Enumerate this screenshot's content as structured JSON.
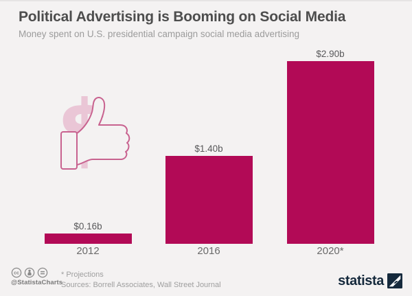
{
  "header": {
    "title": "Political Advertising is Booming on Social Media",
    "subtitle": "Money spent on U.S. presidential campaign social media advertising"
  },
  "chart_data": {
    "type": "bar",
    "title": "Political Advertising is Booming on Social Media",
    "subtitle": "Money spent on U.S. presidential campaign social media advertising",
    "categories": [
      "2012",
      "2016",
      "2020*"
    ],
    "values": [
      0.16,
      1.4,
      2.9
    ],
    "value_labels": [
      "$0.16b",
      "$1.40b",
      "$2.90b"
    ],
    "ylim": [
      0,
      2.9
    ],
    "grid": false,
    "legend": "none",
    "bar_color": "#b20a56"
  },
  "deco": {
    "dollar_glyph": "$"
  },
  "footer": {
    "cc_label": "cc",
    "handle": "@StatistaCharts",
    "note": "* Projections",
    "sources": "Sources: Borrell Associates, Wall Street Journal",
    "brand": "statista"
  },
  "colors": {
    "background": "#f4f2f2",
    "bar": "#b20a56",
    "accent_light": "#eac6d6",
    "accent_outline": "#c8628f",
    "brand_navy": "#15293c",
    "title_text": "#4d4d4d",
    "muted_text": "#9b9b9b"
  }
}
